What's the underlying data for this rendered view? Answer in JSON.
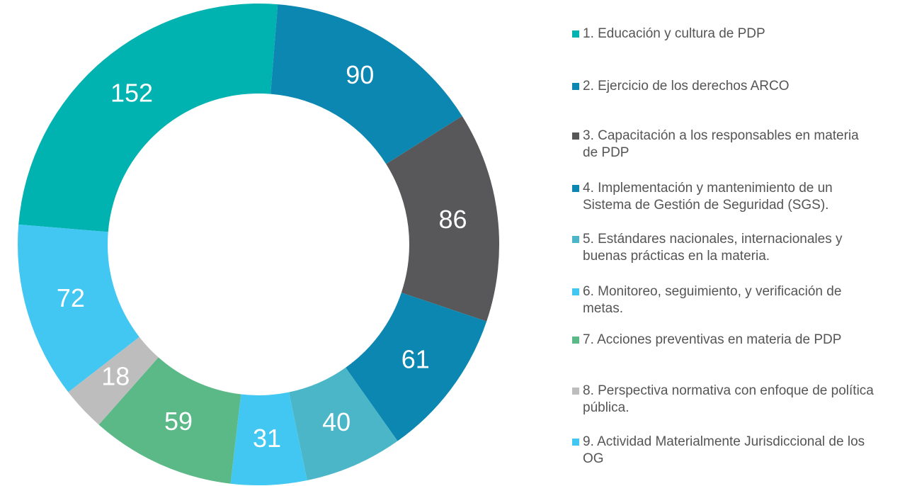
{
  "chart_data": {
    "type": "donut",
    "categories": [
      "1. Educación y cultura de PDP",
      "2. Ejercicio de los derechos ARCO",
      "3. Capacitación a los responsables en materia de PDP",
      "4. Implementación y mantenimiento de un Sistema de Gestión de Seguridad (SGS).",
      "5. Estándares nacionales, internacionales y buenas prácticas en la materia.",
      "6. Monitoreo, seguimiento, y verificación de metas.",
      "7. Acciones preventivas en materia de PDP",
      "8. Perspectiva normativa con enfoque de política pública.",
      "9. Actividad Materialmente Jurisdiccional de los OG"
    ],
    "values": [
      152,
      90,
      86,
      61,
      40,
      31,
      59,
      18,
      72
    ],
    "colors": [
      "#00b2b0",
      "#0b87b1",
      "#58585a",
      "#0b87b1",
      "#4ab6c8",
      "#41c7f2",
      "#5bb887",
      "#bdbdbd",
      "#41c7f2"
    ],
    "legend": "right"
  }
}
